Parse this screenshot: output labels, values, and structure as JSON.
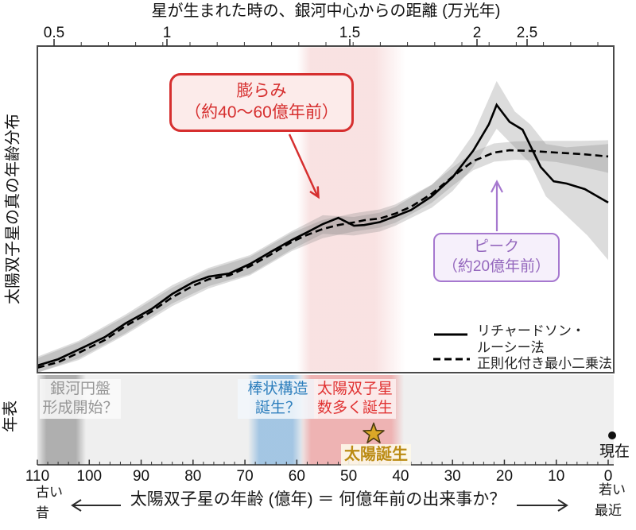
{
  "top_axis": {
    "title": "星が生まれた時の、銀河中心からの距離 (万光年)",
    "ticks": [
      "0.5",
      "1",
      "1.5",
      "2",
      "2.5"
    ]
  },
  "y_axis_label": "太陽双子星の真の年齢分布",
  "annotations": {
    "bulge": {
      "line1": "膨らみ",
      "line2": "（約40〜60億年前）",
      "color": "#d62f2f"
    },
    "peak": {
      "line1": "ピーク",
      "line2": "（約20億年前）",
      "color": "#9467bd"
    }
  },
  "legend": {
    "solid_label_line1": "リチャードソン・",
    "solid_label_line2": "ルーシー法",
    "dashed_label": "正則化付き最小二乗法"
  },
  "timeline": {
    "label": "年表",
    "events": {
      "galaxy": {
        "line1": "銀河円盤",
        "line2": "形成開始？",
        "color": "#969696"
      },
      "bar": {
        "line1": "棒状構造",
        "line2": "誕生？",
        "color": "#2e7fbd"
      },
      "twins": {
        "line1": "太陽双子星",
        "line2": "数多く誕生",
        "color": "#e03131"
      },
      "sun": "太陽誕生",
      "now": "現在"
    }
  },
  "bottom_axis": {
    "ticks": [
      "110",
      "100",
      "90",
      "80",
      "70",
      "60",
      "50",
      "40",
      "30",
      "20",
      "10",
      "0"
    ]
  },
  "caption": {
    "old1": "古い",
    "old2": "昔",
    "text": "太陽双子星の年齢 (億年) ＝ 何億年前の出来事か？",
    "young1": "若い",
    "young2": "最近"
  },
  "colors": {
    "red": "#d62f2f",
    "pink_band": "#f6d6d6",
    "red_band": "#eeb0b0",
    "purple": "#9467bd",
    "purple_border": "#a678cf",
    "blue_text": "#2e7fbd",
    "blue_band": "#9bc1e2",
    "gray_text": "#969696",
    "gray_band": "#a8a8a8",
    "gold_text": "#bb8b13",
    "star_fill": "#dba827",
    "timeline_bg": "#efefef",
    "line": "#000000",
    "band_gray": "rgba(130,130,130,0.28)"
  },
  "chart_data": {
    "type": "line",
    "title": "太陽双子星の真の年齢分布",
    "x_axis_bottom": {
      "label": "太陽双子星の年齢 (億年) ＝ 何億年前の出来事か？",
      "range": [
        110,
        0
      ],
      "ticks": [
        110,
        100,
        90,
        80,
        70,
        60,
        50,
        40,
        30,
        20,
        10,
        0
      ],
      "minor_tick_step": 2
    },
    "x_axis_top": {
      "label": "星が生まれた時の、銀河中心からの距離 (万光年)",
      "ticks": [
        0.5,
        1,
        1.5,
        2,
        2.5
      ],
      "nonlinear": true
    },
    "y_axis": {
      "label": "太陽双子星の真の年齢分布",
      "range": [
        0,
        1
      ],
      "units": "relative density (unlabeled)"
    },
    "grid": false,
    "legend_position": "lower right",
    "series": [
      {
        "name": "リチャードソン・ルーシー法",
        "style": "solid",
        "points": [
          [
            110,
            0.022
          ],
          [
            106,
            0.041
          ],
          [
            102,
            0.071
          ],
          [
            97,
            0.109
          ],
          [
            93,
            0.151
          ],
          [
            88,
            0.195
          ],
          [
            84,
            0.241
          ],
          [
            80,
            0.277
          ],
          [
            77,
            0.294
          ],
          [
            73,
            0.304
          ],
          [
            69,
            0.333
          ],
          [
            65,
            0.37
          ],
          [
            61,
            0.406
          ],
          [
            58,
            0.43
          ],
          [
            55,
            0.455
          ],
          [
            52,
            0.474
          ],
          [
            49,
            0.45
          ],
          [
            47,
            0.452
          ],
          [
            44,
            0.461
          ],
          [
            41,
            0.479
          ],
          [
            38,
            0.498
          ],
          [
            34,
            0.54
          ],
          [
            30,
            0.598
          ],
          [
            26,
            0.68
          ],
          [
            23,
            0.76
          ],
          [
            21.5,
            0.82
          ],
          [
            19,
            0.768
          ],
          [
            16.5,
            0.744
          ],
          [
            13,
            0.63
          ],
          [
            10.5,
            0.586
          ],
          [
            8,
            0.579
          ],
          [
            4.5,
            0.562
          ],
          [
            0,
            0.521
          ]
        ]
      },
      {
        "name": "正則化付き最小二乗法",
        "style": "dashed",
        "points": [
          [
            110,
            0.015
          ],
          [
            106,
            0.032
          ],
          [
            102,
            0.061
          ],
          [
            97,
            0.1
          ],
          [
            93,
            0.143
          ],
          [
            88,
            0.187
          ],
          [
            84,
            0.231
          ],
          [
            80,
            0.266
          ],
          [
            77,
            0.286
          ],
          [
            73,
            0.298
          ],
          [
            69,
            0.326
          ],
          [
            65,
            0.362
          ],
          [
            61,
            0.4
          ],
          [
            58,
            0.422
          ],
          [
            55,
            0.44
          ],
          [
            52,
            0.452
          ],
          [
            49,
            0.46
          ],
          [
            47,
            0.467
          ],
          [
            44,
            0.472
          ],
          [
            41,
            0.487
          ],
          [
            38,
            0.508
          ],
          [
            34,
            0.548
          ],
          [
            30,
            0.6
          ],
          [
            26,
            0.648
          ],
          [
            22,
            0.674
          ],
          [
            19,
            0.681
          ],
          [
            15,
            0.679
          ],
          [
            10,
            0.674
          ],
          [
            5,
            0.669
          ],
          [
            0,
            0.662
          ]
        ]
      }
    ],
    "uncertainty_bands": [
      {
        "series": "リチャードソン・ルーシー法",
        "upper": [
          [
            110,
            0.049
          ],
          [
            102,
            0.098
          ],
          [
            93,
            0.178
          ],
          [
            84,
            0.268
          ],
          [
            77,
            0.321
          ],
          [
            69,
            0.36
          ],
          [
            61,
            0.433
          ],
          [
            55,
            0.482
          ],
          [
            49,
            0.477
          ],
          [
            44,
            0.49
          ],
          [
            41,
            0.508
          ],
          [
            34,
            0.575
          ],
          [
            30,
            0.64
          ],
          [
            26,
            0.73
          ],
          [
            21.5,
            0.893
          ],
          [
            18,
            0.8
          ],
          [
            15,
            0.76
          ],
          [
            12,
            0.7
          ],
          [
            8,
            0.69
          ],
          [
            4,
            0.695
          ],
          [
            0,
            0.7
          ]
        ],
        "lower": [
          [
            110,
            0.0
          ],
          [
            102,
            0.044
          ],
          [
            93,
            0.121
          ],
          [
            84,
            0.212
          ],
          [
            77,
            0.265
          ],
          [
            69,
            0.302
          ],
          [
            61,
            0.377
          ],
          [
            55,
            0.425
          ],
          [
            49,
            0.42
          ],
          [
            44,
            0.432
          ],
          [
            41,
            0.45
          ],
          [
            34,
            0.505
          ],
          [
            30,
            0.556
          ],
          [
            26,
            0.63
          ],
          [
            21.5,
            0.747
          ],
          [
            18,
            0.69
          ],
          [
            15,
            0.64
          ],
          [
            12,
            0.54
          ],
          [
            8,
            0.48
          ],
          [
            4,
            0.42
          ],
          [
            0,
            0.345
          ]
        ]
      },
      {
        "series": "正則化付き最小二乗法",
        "upper": [
          [
            110,
            0.044
          ],
          [
            102,
            0.093
          ],
          [
            93,
            0.172
          ],
          [
            84,
            0.26
          ],
          [
            77,
            0.315
          ],
          [
            69,
            0.355
          ],
          [
            61,
            0.428
          ],
          [
            55,
            0.468
          ],
          [
            49,
            0.488
          ],
          [
            44,
            0.5
          ],
          [
            41,
            0.515
          ],
          [
            34,
            0.576
          ],
          [
            30,
            0.628
          ],
          [
            26,
            0.676
          ],
          [
            22,
            0.702
          ],
          [
            18,
            0.708
          ],
          [
            14,
            0.71
          ],
          [
            10,
            0.71
          ],
          [
            5,
            0.71
          ],
          [
            0,
            0.712
          ]
        ],
        "lower": [
          [
            110,
            0.0
          ],
          [
            102,
            0.039
          ],
          [
            93,
            0.116
          ],
          [
            84,
            0.204
          ],
          [
            77,
            0.258
          ],
          [
            69,
            0.298
          ],
          [
            61,
            0.372
          ],
          [
            55,
            0.412
          ],
          [
            49,
            0.432
          ],
          [
            44,
            0.444
          ],
          [
            41,
            0.459
          ],
          [
            34,
            0.52
          ],
          [
            30,
            0.572
          ],
          [
            26,
            0.62
          ],
          [
            22,
            0.646
          ],
          [
            18,
            0.652
          ],
          [
            14,
            0.65
          ],
          [
            10,
            0.645
          ],
          [
            5,
            0.63
          ],
          [
            0,
            0.612
          ]
        ]
      }
    ],
    "highlights": {
      "bulge_age_range_oku_years": [
        60,
        40
      ],
      "peak_age_oku_years": 20,
      "sun_birth_age_oku_years": 46,
      "now_age_oku_years": 0,
      "galaxy_disk_band_age_range": [
        110,
        101
      ],
      "bar_structure_band_age_range": [
        68,
        59
      ]
    }
  }
}
